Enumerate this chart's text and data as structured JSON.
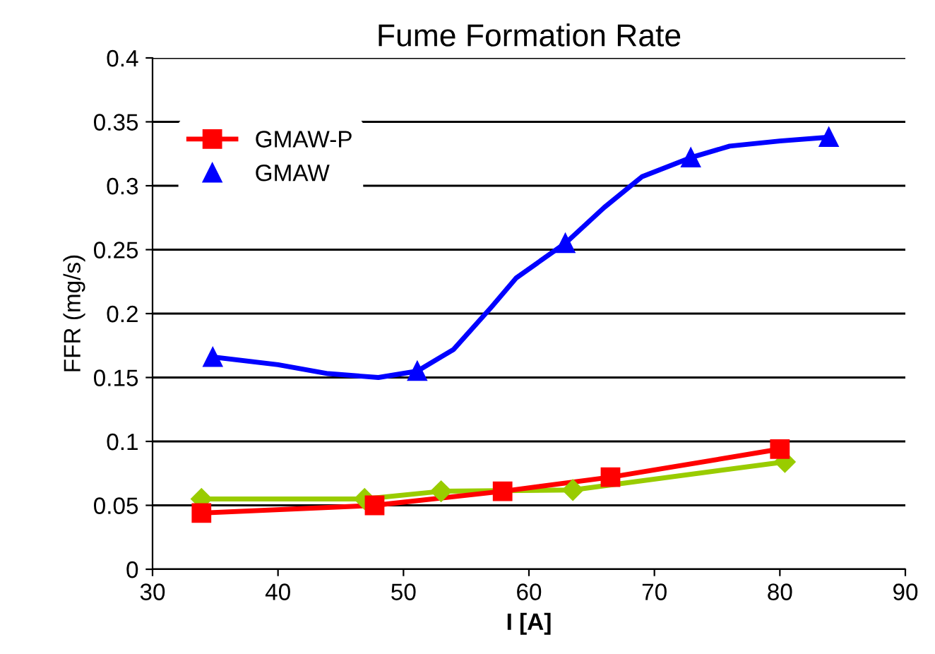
{
  "chart_data": {
    "type": "line",
    "title": "Fume Formation Rate",
    "xlabel": "I [A]",
    "ylabel": "FFR (mg/s)",
    "xlim": [
      30,
      90
    ],
    "xticks": [
      30,
      40,
      50,
      60,
      70,
      80,
      90
    ],
    "ylim": [
      0,
      0.4
    ],
    "yticks": [
      0,
      0.05,
      0.1,
      0.15,
      0.2,
      0.25,
      0.3,
      0.35,
      0.4
    ],
    "grid": "y",
    "legend": "top left",
    "line_style": "solid",
    "series": [
      {
        "color": "#99cc00",
        "marker": "diamond",
        "x": [
          33.9,
          46.9,
          53.0,
          63.5,
          80.4
        ],
        "values": [
          0.055,
          0.055,
          0.061,
          0.062,
          0.084
        ]
      },
      {
        "name": "GMAW-P",
        "color": "#ff0000",
        "marker": "square",
        "x": [
          33.9,
          47.7,
          57.9,
          66.5,
          80.0
        ],
        "values": [
          0.044,
          0.05,
          0.061,
          0.072,
          0.094
        ]
      },
      {
        "type": "scatter",
        "name": "GMAW",
        "color": "#0000ff",
        "marker": "triangle",
        "x": [
          34.8,
          51.1,
          62.9,
          72.9,
          83.9
        ],
        "values": [
          0.166,
          0.155,
          0.255,
          0.322,
          0.338
        ]
      },
      {
        "color": "#0000ff",
        "marker": "none",
        "x": [
          34.8,
          40,
          44,
          48,
          51.1,
          54,
          57,
          59,
          62.9,
          66,
          69,
          72.9,
          76,
          80,
          83.9
        ],
        "values": [
          0.166,
          0.16,
          0.153,
          0.15,
          0.155,
          0.172,
          0.205,
          0.228,
          0.255,
          0.283,
          0.307,
          0.322,
          0.331,
          0.335,
          0.338
        ]
      }
    ]
  }
}
